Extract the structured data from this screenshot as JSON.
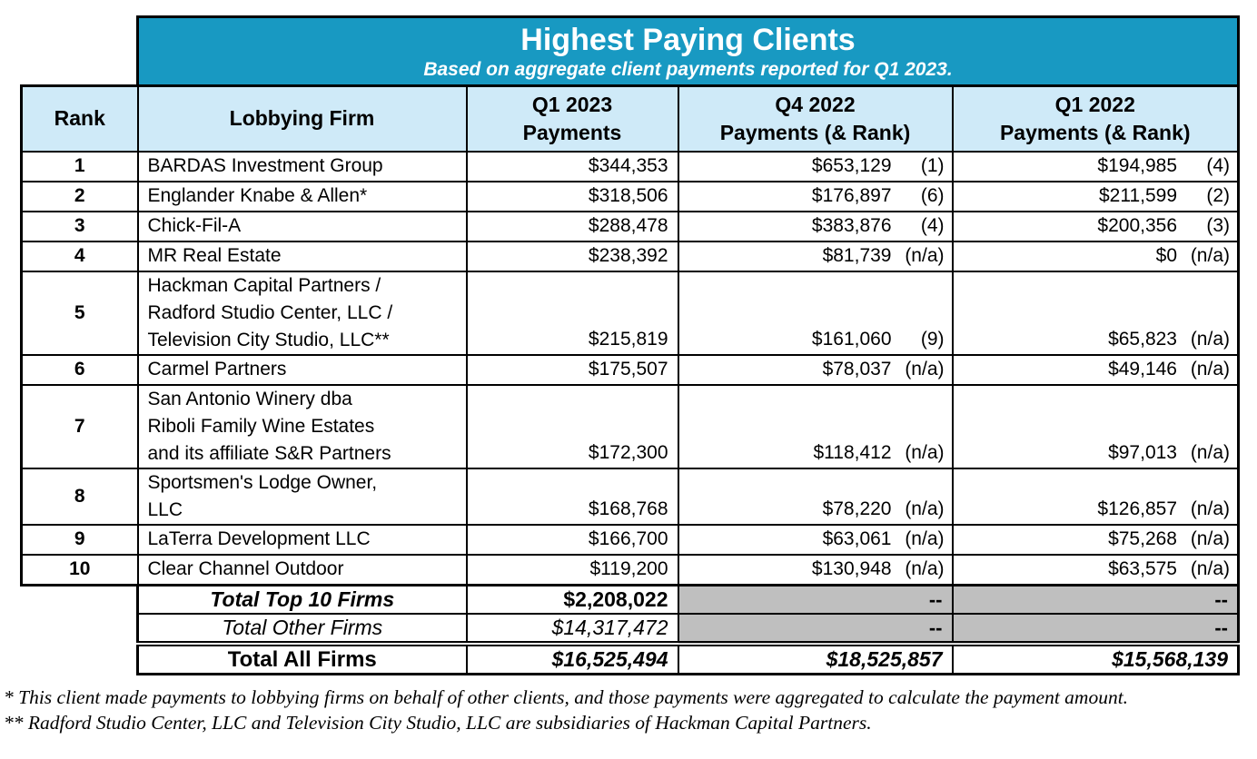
{
  "title": {
    "heading": "Highest Paying Clients",
    "subtitle": "Based on aggregate client payments reported for Q1 2023."
  },
  "columns": [
    "Rank",
    "Lobbying Firm",
    "Q1 2023\nPayments",
    "Q4 2022\nPayments (& Rank)",
    "Q1 2022\nPayments (& Rank)"
  ],
  "rows": [
    {
      "rank": "1",
      "firm": "BARDAS Investment Group",
      "q1_2023": "$344,353",
      "q4_2022": "$653,129",
      "q4_rank": "(1)",
      "q1_2022": "$194,985",
      "q1_rank": "(4)"
    },
    {
      "rank": "2",
      "firm": "Englander Knabe & Allen*",
      "q1_2023": "$318,506",
      "q4_2022": "$176,897",
      "q4_rank": "(6)",
      "q1_2022": "$211,599",
      "q1_rank": "(2)"
    },
    {
      "rank": "3",
      "firm": "Chick-Fil-A",
      "q1_2023": "$288,478",
      "q4_2022": "$383,876",
      "q4_rank": "(4)",
      "q1_2022": "$200,356",
      "q1_rank": "(3)"
    },
    {
      "rank": "4",
      "firm": "MR Real Estate",
      "q1_2023": "$238,392",
      "q4_2022": "$81,739",
      "q4_rank": "(n/a)",
      "q1_2022": "$0",
      "q1_rank": "(n/a)"
    },
    {
      "rank": "5",
      "firm": "Hackman Capital Partners /\nRadford Studio Center, LLC /\nTelevision City Studio, LLC**",
      "q1_2023": "$215,819",
      "q4_2022": "$161,060",
      "q4_rank": "(9)",
      "q1_2022": "$65,823",
      "q1_rank": "(n/a)"
    },
    {
      "rank": "6",
      "firm": "Carmel Partners",
      "q1_2023": "$175,507",
      "q4_2022": "$78,037",
      "q4_rank": "(n/a)",
      "q1_2022": "$49,146",
      "q1_rank": "(n/a)"
    },
    {
      "rank": "7",
      "firm": "San Antonio Winery dba\nRiboli Family Wine Estates\nand its affiliate S&R Partners",
      "q1_2023": "$172,300",
      "q4_2022": "$118,412",
      "q4_rank": "(n/a)",
      "q1_2022": "$97,013",
      "q1_rank": "(n/a)"
    },
    {
      "rank": "8",
      "firm": "Sportsmen's Lodge Owner,\nLLC",
      "q1_2023": "$168,768",
      "q4_2022": "$78,220",
      "q4_rank": "(n/a)",
      "q1_2022": "$126,857",
      "q1_rank": "(n/a)"
    },
    {
      "rank": "9",
      "firm": "LaTerra Development LLC",
      "q1_2023": "$166,700",
      "q4_2022": "$63,061",
      "q4_rank": "(n/a)",
      "q1_2022": "$75,268",
      "q1_rank": "(n/a)"
    },
    {
      "rank": "10",
      "firm": "Clear Channel Outdoor",
      "q1_2023": "$119,200",
      "q4_2022": "$130,948",
      "q4_rank": "(n/a)",
      "q1_2022": "$63,575",
      "q1_rank": "(n/a)"
    }
  ],
  "totals": [
    {
      "style": "top10",
      "label": "Total Top 10 Firms",
      "q1_2023": "$2,208,022",
      "q4_2022": "--",
      "q1_2022": "--"
    },
    {
      "style": "other",
      "label": "Total Other Firms",
      "q1_2023": "$14,317,472",
      "q4_2022": "--",
      "q1_2022": "--"
    },
    {
      "style": "all",
      "label": "Total All Firms",
      "q1_2023": "$16,525,494",
      "q4_2022": "$18,525,857",
      "q1_2022": "$15,568,139"
    }
  ],
  "footnotes": [
    "* This client made payments to lobbying firms on behalf of other clients, and those payments were aggregated to calculate the payment amount.",
    "** Radford Studio Center, LLC and Television City Studio, LLC are subsidiaries of Hackman Capital Partners."
  ],
  "colors": {
    "title_bg": "#1899C2",
    "title_text": "#FFFFFF",
    "column_header_bg": "#CFEAF8",
    "q4_column_bg": "#E0EECD",
    "q1_2022_column_bg": "#ECE0F3",
    "total_na_bg": "#BFBFBF",
    "border": "#000000"
  }
}
